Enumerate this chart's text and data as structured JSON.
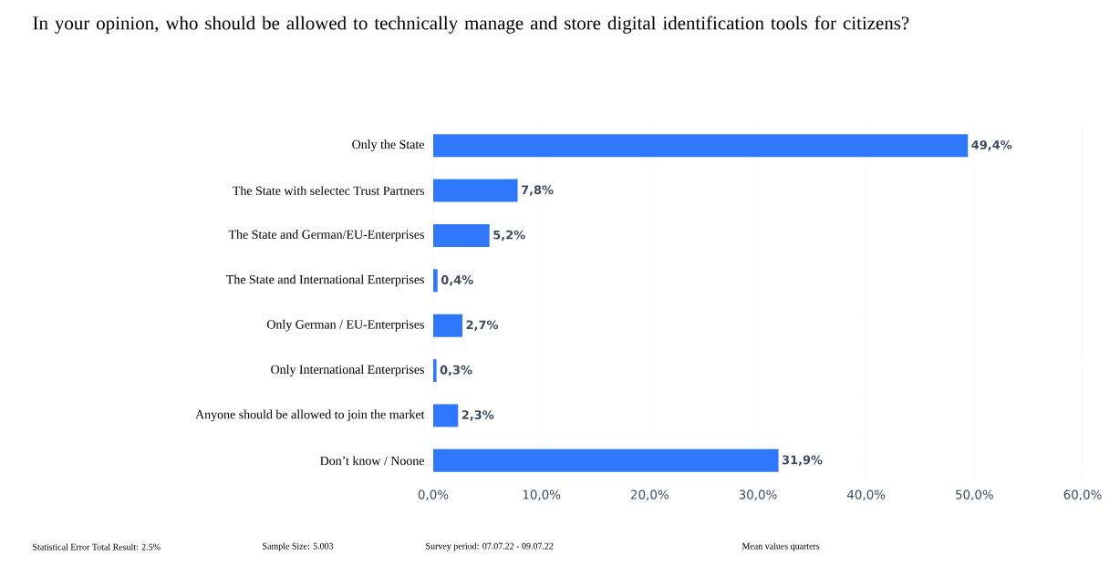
{
  "chart_data": {
    "type": "bar",
    "orientation": "horizontal",
    "title": "In your opinion, who should be allowed to technically manage and store digital identification tools for citizens?",
    "categories": [
      "Only the State",
      "The State with selectec Trust Partners",
      "The State and German/EU-Enterprises",
      "The State and International Enterprises",
      "Only German / EU-Enterprises",
      "Only International Enterprises",
      "Anyone should be allowed to join the market",
      "Don’t know / Noone"
    ],
    "values": [
      49.4,
      7.8,
      5.2,
      0.4,
      2.7,
      0.3,
      2.3,
      31.9
    ],
    "value_labels": [
      "49,4%",
      "7,8%",
      "5,2%",
      "0,4%",
      "2,7%",
      "0,3%",
      "2,3%",
      "31,9%"
    ],
    "color": "#2f78fb",
    "xlim": [
      0,
      60
    ],
    "xticks": [
      {
        "value": 0,
        "label": "0,0%"
      },
      {
        "value": 10,
        "label": "10,0%"
      },
      {
        "value": 20,
        "label": "20,0%"
      },
      {
        "value": 30,
        "label": "30,0%"
      },
      {
        "value": 40,
        "label": "40,0%"
      },
      {
        "value": 50,
        "label": "50,0%"
      },
      {
        "value": 60,
        "label": "60,0%"
      }
    ],
    "grid": "x",
    "annotations": [
      "Statistical Error Total Result: 2.5%",
      "Sample Size: 5.003",
      "Survey period: 07.07.22 - 09.07.22",
      "Mean values quarters"
    ]
  }
}
